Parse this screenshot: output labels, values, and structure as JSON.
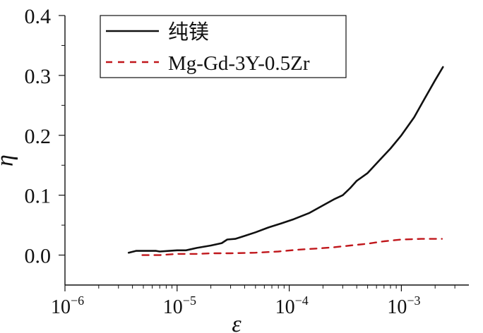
{
  "chart_data": {
    "type": "line",
    "xlabel": "ε",
    "ylabel": "η",
    "x_scale": "log",
    "xlim": [
      1e-06,
      0.004
    ],
    "ylim": [
      -0.05,
      0.4
    ],
    "x_tick_labels": [
      {
        "value": 1e-06,
        "base": "10",
        "exp": "−6"
      },
      {
        "value": 1e-05,
        "base": "10",
        "exp": "−5"
      },
      {
        "value": 0.0001,
        "base": "10",
        "exp": "−4"
      },
      {
        "value": 0.001,
        "base": "10",
        "exp": "−3"
      }
    ],
    "y_ticks": [
      0.0,
      0.1,
      0.2,
      0.3,
      0.4
    ],
    "y_tick_labels": [
      "0.0",
      "0.1",
      "0.2",
      "0.3",
      "0.4"
    ],
    "legend_position": "top-left",
    "grid": false,
    "series": [
      {
        "name": "纯镁",
        "color": "#111111",
        "style": "solid",
        "points": [
          [
            3.7e-06,
            0.004
          ],
          [
            4.3e-06,
            0.007
          ],
          [
            5.5e-06,
            0.007
          ],
          [
            6.5e-06,
            0.007
          ],
          [
            7e-06,
            0.006
          ],
          [
            8.5e-06,
            0.007
          ],
          [
            1e-05,
            0.008
          ],
          [
            1.2e-05,
            0.008
          ],
          [
            1.5e-05,
            0.012
          ],
          [
            2e-05,
            0.016
          ],
          [
            2.5e-05,
            0.02
          ],
          [
            2.8e-05,
            0.026
          ],
          [
            3.3e-05,
            0.027
          ],
          [
            4e-05,
            0.032
          ],
          [
            5e-05,
            0.038
          ],
          [
            6.5e-05,
            0.046
          ],
          [
            8.5e-05,
            0.053
          ],
          [
            0.00011,
            0.06
          ],
          [
            0.00015,
            0.07
          ],
          [
            0.0002,
            0.083
          ],
          [
            0.00025,
            0.093
          ],
          [
            0.0003,
            0.1
          ],
          [
            0.00035,
            0.112
          ],
          [
            0.0004,
            0.124
          ],
          [
            0.0005,
            0.137
          ],
          [
            0.00065,
            0.16
          ],
          [
            0.0008,
            0.178
          ],
          [
            0.001,
            0.2
          ],
          [
            0.0013,
            0.23
          ],
          [
            0.0016,
            0.26
          ],
          [
            0.002,
            0.292
          ],
          [
            0.00235,
            0.314
          ]
        ]
      },
      {
        "name": "Mg-Gd-3Y-0.5Zr",
        "color": "#c0161b",
        "style": "dashed",
        "points": [
          [
            4.9e-06,
            0.0
          ],
          [
            7e-06,
            0.0
          ],
          [
            1e-05,
            0.002
          ],
          [
            1.5e-05,
            0.002
          ],
          [
            2e-05,
            0.003
          ],
          [
            3e-05,
            0.003
          ],
          [
            5e-05,
            0.004
          ],
          [
            8e-05,
            0.006
          ],
          [
            0.00012,
            0.009
          ],
          [
            0.00018,
            0.011
          ],
          [
            0.00025,
            0.013
          ],
          [
            0.00035,
            0.016
          ],
          [
            0.0005,
            0.019
          ],
          [
            0.0007,
            0.023
          ],
          [
            0.001,
            0.026
          ],
          [
            0.0015,
            0.027
          ],
          [
            0.0023,
            0.027
          ]
        ]
      }
    ]
  }
}
